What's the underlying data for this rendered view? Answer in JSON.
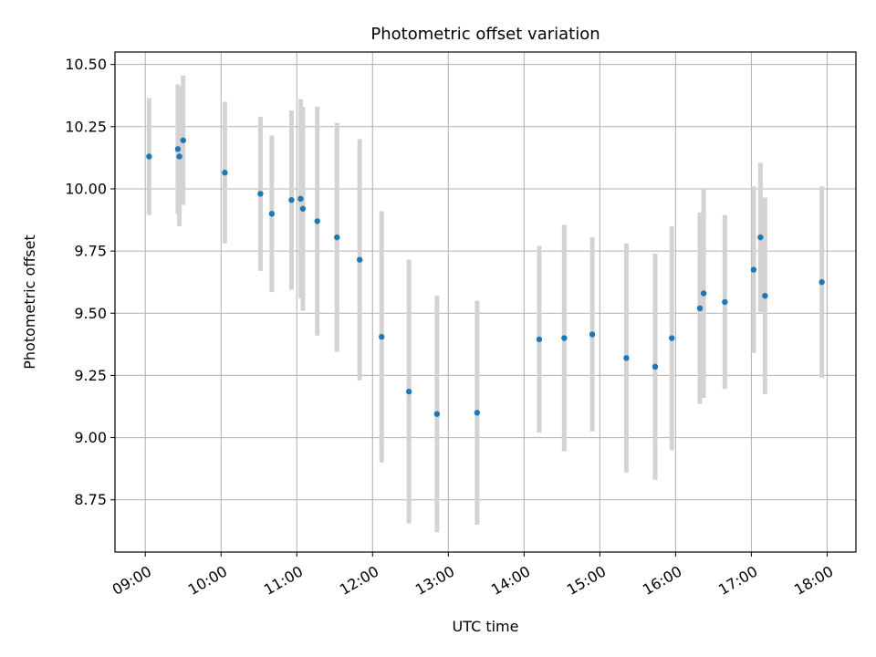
{
  "chart_data": {
    "type": "scatter",
    "title": "Photometric offset variation",
    "xlabel": "UTC time",
    "ylabel": "Photometric offset",
    "x_unit": "hours UTC",
    "xlim": [
      8.6,
      18.38
    ],
    "ylim": [
      8.54,
      10.55
    ],
    "x_ticks": [
      {
        "value": 9,
        "label": "09:00"
      },
      {
        "value": 10,
        "label": "10:00"
      },
      {
        "value": 11,
        "label": "11:00"
      },
      {
        "value": 12,
        "label": "12:00"
      },
      {
        "value": 13,
        "label": "13:00"
      },
      {
        "value": 14,
        "label": "14:00"
      },
      {
        "value": 15,
        "label": "15:00"
      },
      {
        "value": 16,
        "label": "16:00"
      },
      {
        "value": 17,
        "label": "17:00"
      },
      {
        "value": 18,
        "label": "18:00"
      }
    ],
    "y_ticks": [
      {
        "value": 8.75,
        "label": "8.75"
      },
      {
        "value": 9.0,
        "label": "9.00"
      },
      {
        "value": 9.25,
        "label": "9.25"
      },
      {
        "value": 9.5,
        "label": "9.50"
      },
      {
        "value": 9.75,
        "label": "9.75"
      },
      {
        "value": 10.0,
        "label": "10.00"
      },
      {
        "value": 10.25,
        "label": "10.25"
      },
      {
        "value": 10.5,
        "label": "10.50"
      }
    ],
    "grid": true,
    "colors": {
      "point": "#1f77b4",
      "errorbar": "#d3d3d3",
      "grid": "#b0b0b0"
    },
    "points": [
      {
        "x": 9.05,
        "y": 10.13,
        "yerr": 0.235
      },
      {
        "x": 9.43,
        "y": 10.16,
        "yerr": 0.26
      },
      {
        "x": 9.45,
        "y": 10.13,
        "yerr": 0.28
      },
      {
        "x": 9.5,
        "y": 10.195,
        "yerr": 0.26
      },
      {
        "x": 10.05,
        "y": 10.065,
        "yerr": 0.285
      },
      {
        "x": 10.52,
        "y": 9.98,
        "yerr": 0.31
      },
      {
        "x": 10.67,
        "y": 9.9,
        "yerr": 0.315
      },
      {
        "x": 10.93,
        "y": 9.955,
        "yerr": 0.36
      },
      {
        "x": 11.05,
        "y": 9.96,
        "yerr": 0.4
      },
      {
        "x": 11.08,
        "y": 9.92,
        "yerr": 0.41
      },
      {
        "x": 11.27,
        "y": 9.87,
        "yerr": 0.46
      },
      {
        "x": 11.53,
        "y": 9.805,
        "yerr": 0.46
      },
      {
        "x": 11.83,
        "y": 9.715,
        "yerr": 0.485
      },
      {
        "x": 12.12,
        "y": 9.405,
        "yerr": 0.505
      },
      {
        "x": 12.48,
        "y": 9.185,
        "yerr": 0.53
      },
      {
        "x": 12.85,
        "y": 9.095,
        "yerr": 0.475
      },
      {
        "x": 13.38,
        "y": 9.1,
        "yerr": 0.45
      },
      {
        "x": 14.2,
        "y": 9.395,
        "yerr": 0.375
      },
      {
        "x": 14.53,
        "y": 9.4,
        "yerr": 0.455
      },
      {
        "x": 14.9,
        "y": 9.415,
        "yerr": 0.39
      },
      {
        "x": 15.35,
        "y": 9.32,
        "yerr": 0.46
      },
      {
        "x": 15.73,
        "y": 9.285,
        "yerr": 0.455
      },
      {
        "x": 15.95,
        "y": 9.4,
        "yerr": 0.45
      },
      {
        "x": 16.32,
        "y": 9.52,
        "yerr": 0.385
      },
      {
        "x": 16.37,
        "y": 9.58,
        "yerr": 0.42
      },
      {
        "x": 16.65,
        "y": 9.545,
        "yerr": 0.35
      },
      {
        "x": 17.03,
        "y": 9.675,
        "yerr": 0.335
      },
      {
        "x": 17.12,
        "y": 9.805,
        "yerr": 0.3
      },
      {
        "x": 17.18,
        "y": 9.57,
        "yerr": 0.395
      },
      {
        "x": 17.93,
        "y": 9.625,
        "yerr": 0.385
      }
    ]
  }
}
